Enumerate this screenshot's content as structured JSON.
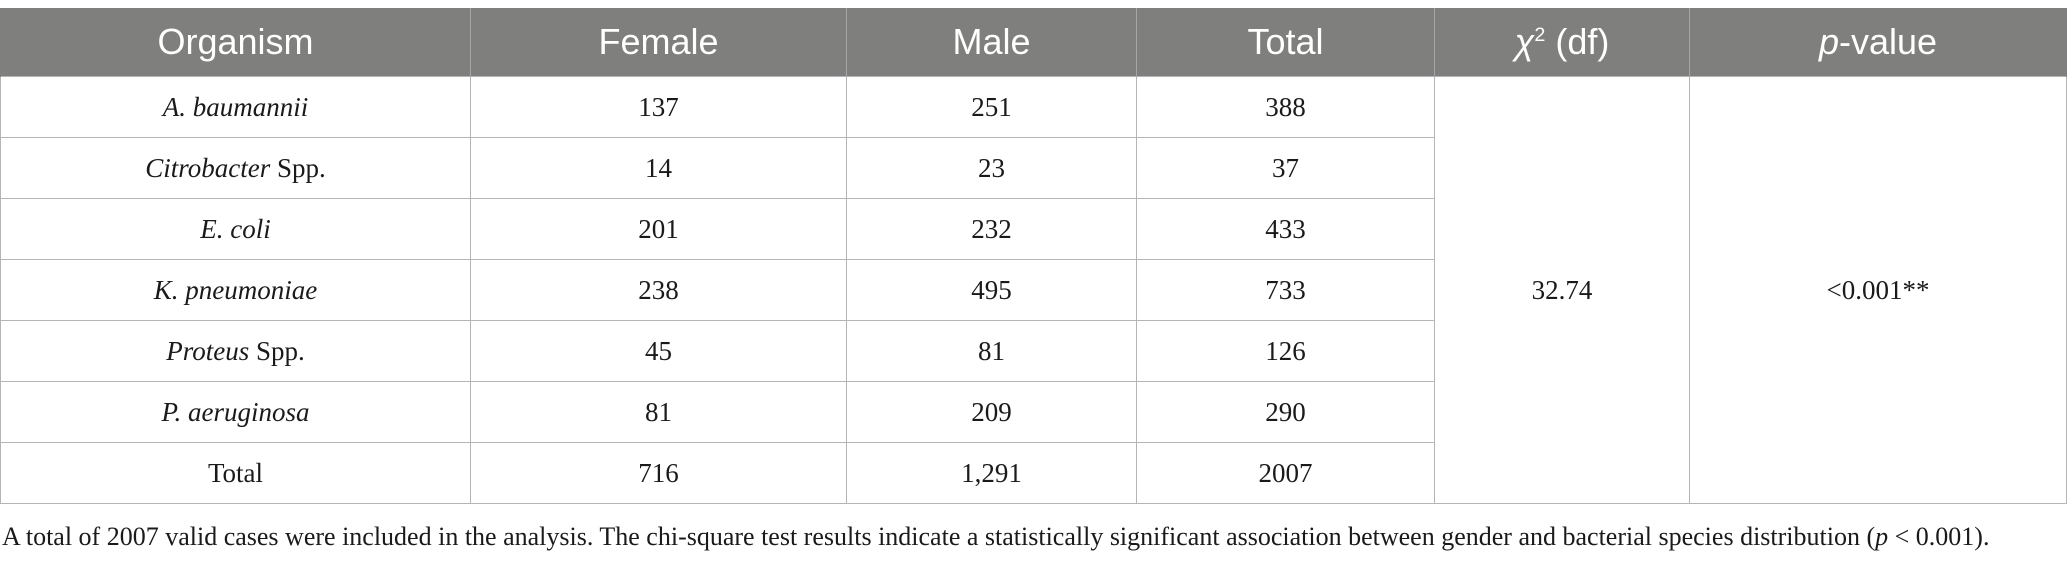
{
  "table": {
    "headers": {
      "organism": "Organism",
      "female": "Female",
      "male": "Male",
      "total": "Total",
      "chi_symbol": "χ",
      "chi_sup": "2",
      "chi_rest": " (df)",
      "p_italic": "p",
      "p_rest": "-value"
    },
    "rows": [
      {
        "name_italic": "A. baumannii",
        "name_rest": "",
        "female": "137",
        "male": "251",
        "total": "388"
      },
      {
        "name_italic": "Citrobacter",
        "name_rest": " Spp.",
        "female": "14",
        "male": "23",
        "total": "37"
      },
      {
        "name_italic": "E. coli",
        "name_rest": "",
        "female": "201",
        "male": "232",
        "total": "433"
      },
      {
        "name_italic": "K. pneumoniae",
        "name_rest": "",
        "female": "238",
        "male": "495",
        "total": "733"
      },
      {
        "name_italic": "Proteus",
        "name_rest": " Spp.",
        "female": "45",
        "male": "81",
        "total": "126"
      },
      {
        "name_italic": "P. aeruginosa",
        "name_rest": "",
        "female": "81",
        "male": "209",
        "total": "290"
      }
    ],
    "total_row": {
      "label": "Total",
      "female": "716",
      "male": "1,291",
      "total": "2007"
    },
    "chi_value": "32.74",
    "p_value": "<0.001**",
    "colors": {
      "header_bg": "#7f7f7e",
      "header_text": "#ffffff",
      "border": "#b5b5b5"
    }
  },
  "footnote": {
    "text_before": "A total of 2007 valid cases were included in the analysis. The chi-square test results indicate a statistically significant association between gender and bacterial species distribution (",
    "p_italic": "p",
    "text_after": " < 0.001)."
  }
}
